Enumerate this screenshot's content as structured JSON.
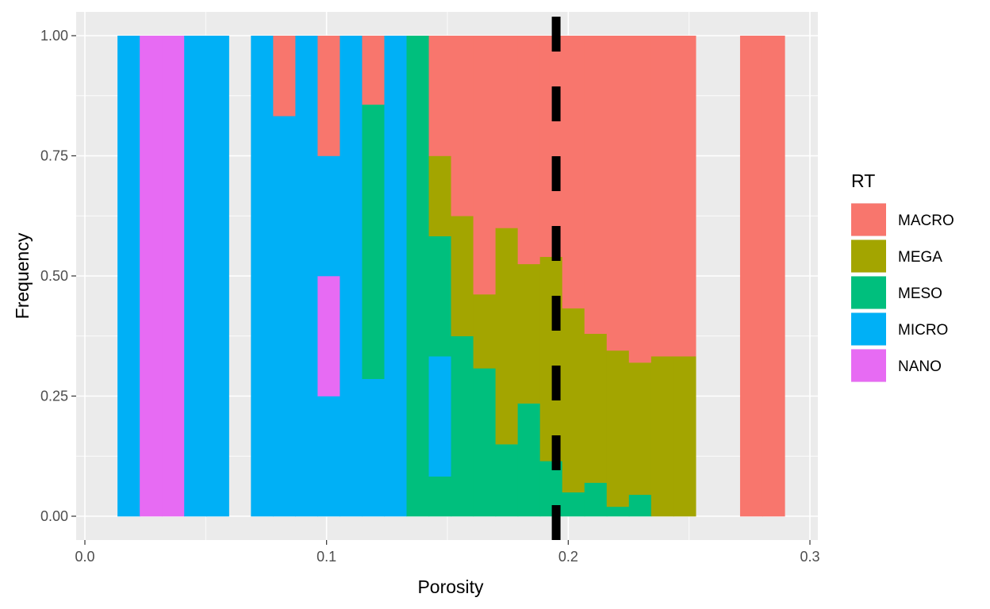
{
  "chart_data": {
    "type": "bar",
    "stacked": "fill",
    "xlabel": "Porosity",
    "ylabel": "Frequency",
    "xlim": [
      0.0,
      0.3
    ],
    "ylim": [
      0.0,
      1.0
    ],
    "x_ticks": [
      0.0,
      0.1,
      0.2,
      0.3
    ],
    "x_tick_labels": [
      "0.0",
      "0.1",
      "0.2",
      "0.3"
    ],
    "y_ticks": [
      0.0,
      0.25,
      0.5,
      0.75,
      1.0
    ],
    "y_tick_labels": [
      "0.00",
      "0.25",
      "0.50",
      "0.75",
      "1.00"
    ],
    "grid": true,
    "legend": {
      "title": "RT",
      "position": "right",
      "entries": [
        "MACRO",
        "MEGA",
        "MESO",
        "MICRO",
        "NANO"
      ]
    },
    "colors": {
      "MACRO": "#F8766D",
      "MEGA": "#A3A500",
      "MESO": "#00BF7D",
      "MICRO": "#00B0F6",
      "NANO": "#E76BF3"
    },
    "vline": {
      "x": 0.195,
      "style": "dashed",
      "color": "#000000"
    },
    "bins": [
      {
        "x0": 0.0135,
        "x1": 0.0227,
        "NANO": 0.0,
        "MICRO": 1.0,
        "MESO": 0.0,
        "MEGA": 0.0,
        "MACRO": 0.0
      },
      {
        "x0": 0.0227,
        "x1": 0.0319,
        "NANO": 1.0,
        "MICRO": 0.0,
        "MESO": 0.0,
        "MEGA": 0.0,
        "MACRO": 0.0
      },
      {
        "x0": 0.0319,
        "x1": 0.0411,
        "NANO": 1.0,
        "MICRO": 0.0,
        "MESO": 0.0,
        "MEGA": 0.0,
        "MACRO": 0.0
      },
      {
        "x0": 0.0411,
        "x1": 0.0503,
        "NANO": 0.0,
        "MICRO": 1.0,
        "MESO": 0.0,
        "MEGA": 0.0,
        "MACRO": 0.0
      },
      {
        "x0": 0.0503,
        "x1": 0.0595,
        "NANO": 0.0,
        "MICRO": 1.0,
        "MESO": 0.0,
        "MEGA": 0.0,
        "MACRO": 0.0
      },
      {
        "x0": 0.0687,
        "x1": 0.0779,
        "NANO": 0.0,
        "MICRO": 1.0,
        "MESO": 0.0,
        "MEGA": 0.0,
        "MACRO": 0.0
      },
      {
        "x0": 0.0779,
        "x1": 0.0871,
        "NANO": 0.0,
        "MICRO": 0.833,
        "MESO": 0.0,
        "MEGA": 0.0,
        "MACRO": 0.167
      },
      {
        "x0": 0.0871,
        "x1": 0.0963,
        "NANO": 0.0,
        "MICRO": 1.0,
        "MESO": 0.0,
        "MEGA": 0.0,
        "MACRO": 0.0
      },
      {
        "x0": 0.0963,
        "x1": 0.1055,
        "NANO": 0.25,
        "MICRO": 0.5,
        "MESO": 0.0,
        "MEGA": 0.0,
        "MACRO": 0.25
      },
      {
        "x0": 0.1055,
        "x1": 0.1147,
        "NANO": 0.0,
        "MICRO": 1.0,
        "MESO": 0.0,
        "MEGA": 0.0,
        "MACRO": 0.0
      },
      {
        "x0": 0.1147,
        "x1": 0.1239,
        "NANO": 0.0,
        "MICRO": 0.286,
        "MESO": 0.571,
        "MEGA": 0.0,
        "MACRO": 0.143
      },
      {
        "x0": 0.1239,
        "x1": 0.1331,
        "NANO": 0.0,
        "MICRO": 1.0,
        "MESO": 0.0,
        "MEGA": 0.0,
        "MACRO": 0.0
      },
      {
        "x0": 0.1331,
        "x1": 0.1423,
        "NANO": 0.0,
        "MICRO": 0.0,
        "MESO": 1.0,
        "MEGA": 0.0,
        "MACRO": 0.0
      },
      {
        "x0": 0.1423,
        "x1": 0.1515,
        "NANO": 0.0,
        "MICRO": 0.25,
        "MESO": 0.333,
        "MEGA": 0.167,
        "MACRO": 0.25
      },
      {
        "x0": 0.1515,
        "x1": 0.1607,
        "NANO": 0.0,
        "MICRO": 0.0,
        "MESO": 0.375,
        "MEGA": 0.25,
        "MACRO": 0.375
      },
      {
        "x0": 0.1607,
        "x1": 0.1699,
        "NANO": 0.0,
        "MICRO": 0.0,
        "MESO": 0.308,
        "MEGA": 0.154,
        "MACRO": 0.538
      },
      {
        "x0": 0.1699,
        "x1": 0.1791,
        "NANO": 0.0,
        "MICRO": 0.0,
        "MESO": 0.15,
        "MEGA": 0.45,
        "MACRO": 0.4
      },
      {
        "x0": 0.1791,
        "x1": 0.1883,
        "NANO": 0.0,
        "MICRO": 0.0,
        "MESO": 0.235,
        "MEGA": 0.29,
        "MACRO": 0.475
      },
      {
        "x0": 0.1883,
        "x1": 0.1975,
        "NANO": 0.0,
        "MICRO": 0.0,
        "MESO": 0.115,
        "MEGA": 0.425,
        "MACRO": 0.46
      },
      {
        "x0": 0.1975,
        "x1": 0.2067,
        "NANO": 0.0,
        "MICRO": 0.0,
        "MESO": 0.05,
        "MEGA": 0.383,
        "MACRO": 0.567
      },
      {
        "x0": 0.2067,
        "x1": 0.2159,
        "NANO": 0.0,
        "MICRO": 0.0,
        "MESO": 0.07,
        "MEGA": 0.31,
        "MACRO": 0.62
      },
      {
        "x0": 0.2159,
        "x1": 0.2251,
        "NANO": 0.0,
        "MICRO": 0.0,
        "MESO": 0.02,
        "MEGA": 0.325,
        "MACRO": 0.655
      },
      {
        "x0": 0.2251,
        "x1": 0.2343,
        "NANO": 0.0,
        "MICRO": 0.0,
        "MESO": 0.045,
        "MEGA": 0.275,
        "MACRO": 0.68
      },
      {
        "x0": 0.2343,
        "x1": 0.2435,
        "NANO": 0.0,
        "MICRO": 0.0,
        "MESO": 0.0,
        "MEGA": 0.333,
        "MACRO": 0.667
      },
      {
        "x0": 0.2435,
        "x1": 0.2527,
        "NANO": 0.0,
        "MICRO": 0.0,
        "MESO": 0.0,
        "MEGA": 0.333,
        "MACRO": 0.667
      },
      {
        "x0": 0.2711,
        "x1": 0.2803,
        "NANO": 0.0,
        "MICRO": 0.0,
        "MESO": 0.0,
        "MEGA": 0.0,
        "MACRO": 1.0
      },
      {
        "x0": 0.2803,
        "x1": 0.2895,
        "NANO": 0.0,
        "MICRO": 0.0,
        "MESO": 0.0,
        "MEGA": 0.0,
        "MACRO": 1.0
      }
    ]
  }
}
